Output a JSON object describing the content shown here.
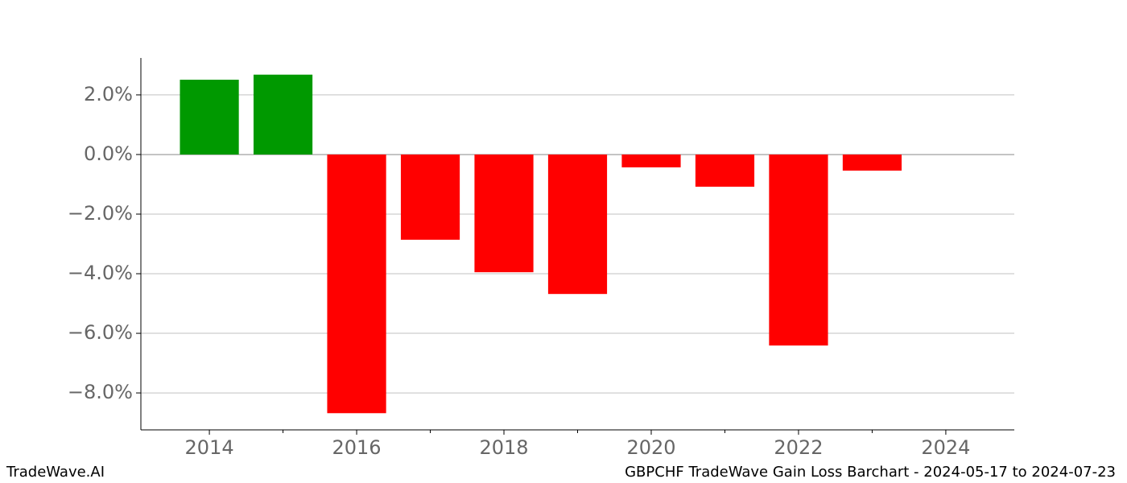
{
  "chart_data": {
    "type": "bar",
    "title": "GBPCHF TradeWave Gain Loss Barchart - 2024-05-17 to 2024-07-23",
    "source": "TradeWave.AI",
    "x": [
      2014,
      2015,
      2016,
      2017,
      2018,
      2019,
      2020,
      2021,
      2022,
      2023
    ],
    "values": [
      2.51,
      2.68,
      -8.68,
      -2.86,
      -3.95,
      -4.68,
      -0.43,
      -1.08,
      -6.41,
      -0.54
    ],
    "positive_color": "#009900",
    "negative_color": "#ff0000",
    "xlim": [
      2013.07,
      2024.93
    ],
    "xticks": [
      2014,
      2016,
      2018,
      2020,
      2022,
      2024
    ],
    "xminor_ticks": [
      2015,
      2017,
      2019,
      2021,
      2023
    ],
    "ylim": [
      -9.24,
      3.24
    ],
    "yticks": [
      {
        "value": -8,
        "label": "−8.0%"
      },
      {
        "value": -6,
        "label": "−6.0%"
      },
      {
        "value": -4,
        "label": "−4.0%"
      },
      {
        "value": -2,
        "label": "−2.0%"
      },
      {
        "value": 0,
        "label": "0.0%"
      },
      {
        "value": 2,
        "label": "2.0%"
      }
    ],
    "grid": true
  }
}
